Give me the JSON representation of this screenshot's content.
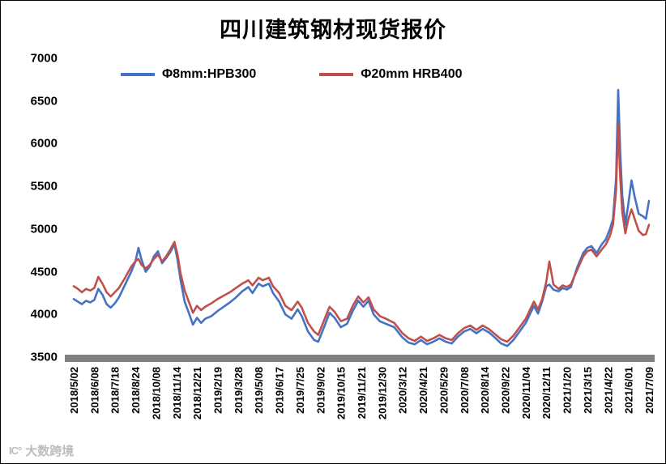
{
  "chart_data": {
    "type": "line",
    "title": "四川建筑钢材现货报价",
    "xlabel": "",
    "ylabel": "",
    "ylim": [
      3500,
      7000
    ],
    "y_tick_labels": [
      "7000",
      "6500",
      "6000",
      "5500",
      "5000",
      "4500",
      "4000",
      "3500"
    ],
    "y_tick_values": [
      7000,
      6500,
      6000,
      5500,
      5000,
      4500,
      4000,
      3500
    ],
    "grid": false,
    "legend_position": "top-inside",
    "x_tick_labels": [
      "2018/5/02",
      "2018/6/08",
      "2018/7/18",
      "2018/8/24",
      "2018/10/08",
      "2018/11/14",
      "2018/12/21",
      "2019/2/19",
      "2019/3/28",
      "2019/5/08",
      "2019/6/17",
      "2019/7/25",
      "2019/9/02",
      "2019/10/15",
      "2019/11/21",
      "2019/12/30",
      "2020/3/12",
      "2020/4/21",
      "2020/5/29",
      "2020/7/08",
      "2020/8/14",
      "2020/9/22",
      "2020/11/04",
      "2020/12/11",
      "2021/1/20",
      "2021/3/15",
      "2021/4/22",
      "2021/6/01",
      "2021/7/09"
    ],
    "x_axis_note": "x values below are fractional tick-index positions (0 = 2018/5/02, 28 = 2021/7/09), prices in CNY/ton",
    "axis_bar_color": "#7f7f7f",
    "series": [
      {
        "name": "Φ8mm:HPB300",
        "color": "#4472C4",
        "points": [
          [
            0,
            4180
          ],
          [
            0.2,
            4150
          ],
          [
            0.4,
            4120
          ],
          [
            0.6,
            4160
          ],
          [
            0.8,
            4140
          ],
          [
            1.0,
            4170
          ],
          [
            1.2,
            4300
          ],
          [
            1.4,
            4230
          ],
          [
            1.6,
            4120
          ],
          [
            1.8,
            4080
          ],
          [
            2.0,
            4130
          ],
          [
            2.2,
            4200
          ],
          [
            2.5,
            4350
          ],
          [
            2.8,
            4500
          ],
          [
            3.0,
            4620
          ],
          [
            3.15,
            4780
          ],
          [
            3.3,
            4640
          ],
          [
            3.5,
            4500
          ],
          [
            3.7,
            4560
          ],
          [
            3.9,
            4680
          ],
          [
            4.1,
            4740
          ],
          [
            4.3,
            4600
          ],
          [
            4.5,
            4660
          ],
          [
            4.7,
            4730
          ],
          [
            4.9,
            4820
          ],
          [
            5.05,
            4640
          ],
          [
            5.2,
            4400
          ],
          [
            5.4,
            4150
          ],
          [
            5.6,
            4020
          ],
          [
            5.8,
            3880
          ],
          [
            6.0,
            3960
          ],
          [
            6.2,
            3900
          ],
          [
            6.4,
            3950
          ],
          [
            6.7,
            3980
          ],
          [
            7.0,
            4040
          ],
          [
            7.3,
            4090
          ],
          [
            7.6,
            4140
          ],
          [
            7.9,
            4200
          ],
          [
            8.2,
            4270
          ],
          [
            8.5,
            4320
          ],
          [
            8.7,
            4250
          ],
          [
            9.0,
            4360
          ],
          [
            9.2,
            4330
          ],
          [
            9.5,
            4360
          ],
          [
            9.7,
            4250
          ],
          [
            10.0,
            4150
          ],
          [
            10.3,
            4000
          ],
          [
            10.6,
            3950
          ],
          [
            10.9,
            4060
          ],
          [
            11.1,
            3980
          ],
          [
            11.4,
            3800
          ],
          [
            11.7,
            3700
          ],
          [
            11.9,
            3680
          ],
          [
            12.2,
            3860
          ],
          [
            12.45,
            4020
          ],
          [
            12.7,
            3960
          ],
          [
            13.0,
            3850
          ],
          [
            13.3,
            3890
          ],
          [
            13.6,
            4050
          ],
          [
            13.85,
            4160
          ],
          [
            14.1,
            4090
          ],
          [
            14.35,
            4160
          ],
          [
            14.6,
            4000
          ],
          [
            14.9,
            3920
          ],
          [
            15.2,
            3890
          ],
          [
            15.6,
            3850
          ],
          [
            16.0,
            3730
          ],
          [
            16.3,
            3670
          ],
          [
            16.6,
            3650
          ],
          [
            16.9,
            3700
          ],
          [
            17.2,
            3650
          ],
          [
            17.5,
            3680
          ],
          [
            17.8,
            3720
          ],
          [
            18.1,
            3680
          ],
          [
            18.4,
            3660
          ],
          [
            18.7,
            3740
          ],
          [
            19.0,
            3800
          ],
          [
            19.3,
            3830
          ],
          [
            19.6,
            3780
          ],
          [
            19.9,
            3830
          ],
          [
            20.2,
            3790
          ],
          [
            20.5,
            3730
          ],
          [
            20.8,
            3660
          ],
          [
            21.1,
            3630
          ],
          [
            21.4,
            3700
          ],
          [
            21.7,
            3800
          ],
          [
            22.0,
            3900
          ],
          [
            22.2,
            4000
          ],
          [
            22.4,
            4100
          ],
          [
            22.6,
            4010
          ],
          [
            22.8,
            4150
          ],
          [
            23.0,
            4330
          ],
          [
            23.15,
            4350
          ],
          [
            23.35,
            4290
          ],
          [
            23.6,
            4270
          ],
          [
            23.8,
            4310
          ],
          [
            24.0,
            4290
          ],
          [
            24.2,
            4320
          ],
          [
            24.5,
            4550
          ],
          [
            24.8,
            4720
          ],
          [
            25.0,
            4780
          ],
          [
            25.2,
            4800
          ],
          [
            25.45,
            4720
          ],
          [
            25.7,
            4820
          ],
          [
            25.9,
            4880
          ],
          [
            26.1,
            5000
          ],
          [
            26.25,
            5120
          ],
          [
            26.4,
            5600
          ],
          [
            26.5,
            6630
          ],
          [
            26.6,
            5900
          ],
          [
            26.7,
            5400
          ],
          [
            26.85,
            5050
          ],
          [
            27.0,
            5300
          ],
          [
            27.15,
            5570
          ],
          [
            27.3,
            5380
          ],
          [
            27.5,
            5180
          ],
          [
            27.7,
            5150
          ],
          [
            27.85,
            5120
          ],
          [
            28,
            5330
          ]
        ]
      },
      {
        "name": "Φ20mm HRB400",
        "color": "#C0504D",
        "points": [
          [
            0,
            4330
          ],
          [
            0.2,
            4300
          ],
          [
            0.4,
            4260
          ],
          [
            0.6,
            4300
          ],
          [
            0.8,
            4280
          ],
          [
            1.0,
            4310
          ],
          [
            1.2,
            4440
          ],
          [
            1.4,
            4360
          ],
          [
            1.6,
            4260
          ],
          [
            1.8,
            4210
          ],
          [
            2.0,
            4260
          ],
          [
            2.2,
            4310
          ],
          [
            2.5,
            4430
          ],
          [
            2.8,
            4560
          ],
          [
            3.0,
            4620
          ],
          [
            3.15,
            4650
          ],
          [
            3.3,
            4580
          ],
          [
            3.5,
            4540
          ],
          [
            3.7,
            4580
          ],
          [
            3.9,
            4650
          ],
          [
            4.1,
            4700
          ],
          [
            4.3,
            4620
          ],
          [
            4.5,
            4680
          ],
          [
            4.7,
            4760
          ],
          [
            4.9,
            4850
          ],
          [
            5.05,
            4700
          ],
          [
            5.2,
            4480
          ],
          [
            5.4,
            4280
          ],
          [
            5.6,
            4150
          ],
          [
            5.8,
            4020
          ],
          [
            6.0,
            4100
          ],
          [
            6.2,
            4050
          ],
          [
            6.4,
            4090
          ],
          [
            6.7,
            4130
          ],
          [
            7.0,
            4180
          ],
          [
            7.3,
            4220
          ],
          [
            7.6,
            4260
          ],
          [
            7.9,
            4310
          ],
          [
            8.2,
            4360
          ],
          [
            8.5,
            4400
          ],
          [
            8.7,
            4340
          ],
          [
            9.0,
            4430
          ],
          [
            9.2,
            4400
          ],
          [
            9.5,
            4430
          ],
          [
            9.7,
            4330
          ],
          [
            10.0,
            4250
          ],
          [
            10.3,
            4100
          ],
          [
            10.6,
            4050
          ],
          [
            10.9,
            4150
          ],
          [
            11.1,
            4080
          ],
          [
            11.4,
            3900
          ],
          [
            11.7,
            3800
          ],
          [
            11.9,
            3760
          ],
          [
            12.2,
            3940
          ],
          [
            12.45,
            4090
          ],
          [
            12.7,
            4030
          ],
          [
            13.0,
            3920
          ],
          [
            13.3,
            3950
          ],
          [
            13.6,
            4110
          ],
          [
            13.85,
            4210
          ],
          [
            14.1,
            4140
          ],
          [
            14.35,
            4200
          ],
          [
            14.6,
            4060
          ],
          [
            14.9,
            3980
          ],
          [
            15.2,
            3950
          ],
          [
            15.6,
            3900
          ],
          [
            16.0,
            3780
          ],
          [
            16.3,
            3720
          ],
          [
            16.6,
            3690
          ],
          [
            16.9,
            3740
          ],
          [
            17.2,
            3690
          ],
          [
            17.5,
            3720
          ],
          [
            17.8,
            3760
          ],
          [
            18.1,
            3720
          ],
          [
            18.4,
            3700
          ],
          [
            18.7,
            3780
          ],
          [
            19.0,
            3840
          ],
          [
            19.3,
            3870
          ],
          [
            19.6,
            3820
          ],
          [
            19.9,
            3870
          ],
          [
            20.2,
            3830
          ],
          [
            20.5,
            3770
          ],
          [
            20.8,
            3710
          ],
          [
            21.1,
            3680
          ],
          [
            21.4,
            3750
          ],
          [
            21.7,
            3850
          ],
          [
            22.0,
            3950
          ],
          [
            22.2,
            4050
          ],
          [
            22.4,
            4150
          ],
          [
            22.6,
            4060
          ],
          [
            22.8,
            4180
          ],
          [
            23.0,
            4380
          ],
          [
            23.15,
            4620
          ],
          [
            23.35,
            4350
          ],
          [
            23.6,
            4300
          ],
          [
            23.8,
            4340
          ],
          [
            24.0,
            4320
          ],
          [
            24.2,
            4350
          ],
          [
            24.5,
            4520
          ],
          [
            24.8,
            4680
          ],
          [
            25.0,
            4740
          ],
          [
            25.2,
            4760
          ],
          [
            25.45,
            4680
          ],
          [
            25.7,
            4760
          ],
          [
            25.9,
            4820
          ],
          [
            26.1,
            4920
          ],
          [
            26.25,
            5050
          ],
          [
            26.4,
            5450
          ],
          [
            26.5,
            6230
          ],
          [
            26.6,
            5600
          ],
          [
            26.7,
            5200
          ],
          [
            26.85,
            4950
          ],
          [
            27.0,
            5120
          ],
          [
            27.15,
            5230
          ],
          [
            27.3,
            5120
          ],
          [
            27.5,
            4980
          ],
          [
            27.7,
            4930
          ],
          [
            27.85,
            4940
          ],
          [
            28,
            5050
          ]
        ]
      }
    ]
  },
  "watermark": {
    "logo": "IC°",
    "text": "大数跨境"
  }
}
